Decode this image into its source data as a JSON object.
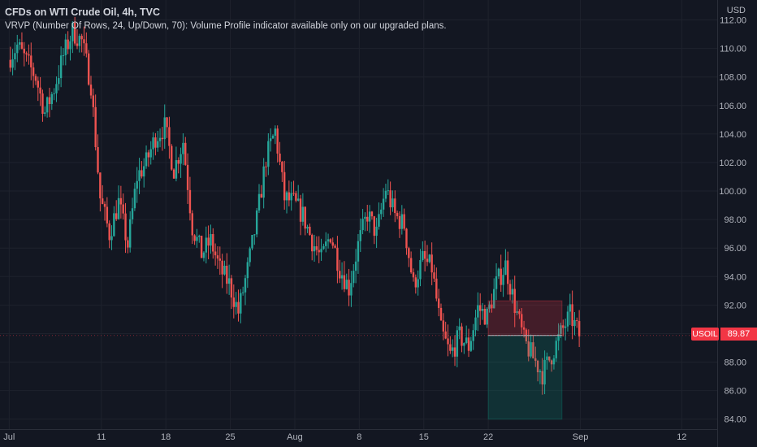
{
  "header": {
    "title": "CFDs on WTI Crude Oil, 4h, TVC",
    "subtitle": "VRVP (Number Of Rows, 24, Up/Down, 70): Volume Profile indicator available only on our upgraded plans."
  },
  "currency": "USD",
  "symbol": "USOIL",
  "last_price": "89.87",
  "colors": {
    "up": "#26a69a",
    "down": "#ef5350",
    "bg": "#131722",
    "grid": "#1e222d",
    "text": "#b2b5be",
    "last": "#f23645"
  },
  "chart_data": {
    "type": "candlestick",
    "y_ticks": [
      "112.00",
      "110.00",
      "108.00",
      "106.00",
      "104.00",
      "102.00",
      "100.00",
      "98.00",
      "96.00",
      "94.00",
      "92.00",
      "90.00",
      "88.00",
      "86.00",
      "84.00"
    ],
    "x_ticks": [
      "Jul",
      "11",
      "18",
      "25",
      "Aug",
      "8",
      "15",
      "22",
      "Sep",
      "12"
    ],
    "ylim": [
      83.3,
      113.4
    ],
    "xlim": [
      "2022-06-30",
      "2022-09-14"
    ],
    "close_path": [
      [
        "2022-07-01",
        109.2
      ],
      [
        "2022-07-02",
        110.2
      ],
      [
        "2022-07-04",
        108.0
      ],
      [
        "2022-07-05",
        105.5
      ],
      [
        "2022-07-06",
        107.2
      ],
      [
        "2022-07-07",
        109.5
      ],
      [
        "2022-07-08",
        111.2
      ],
      [
        "2022-07-09",
        110.5
      ],
      [
        "2022-07-10",
        107.5
      ],
      [
        "2022-07-11",
        99.5
      ],
      [
        "2022-07-12",
        97.0
      ],
      [
        "2022-07-13",
        99.2
      ],
      [
        "2022-07-14",
        96.2
      ],
      [
        "2022-07-15",
        101.0
      ],
      [
        "2022-07-16",
        102.0
      ],
      [
        "2022-07-17",
        103.8
      ],
      [
        "2022-07-18",
        104.5
      ],
      [
        "2022-07-19",
        101.5
      ],
      [
        "2022-07-20",
        103.5
      ],
      [
        "2022-07-21",
        97.5
      ],
      [
        "2022-07-22",
        95.6
      ],
      [
        "2022-07-23",
        96.5
      ],
      [
        "2022-07-24",
        94.5
      ],
      [
        "2022-07-25",
        93.5
      ],
      [
        "2022-07-26",
        91.5
      ],
      [
        "2022-07-27",
        94.5
      ],
      [
        "2022-07-28",
        98.0
      ],
      [
        "2022-07-29",
        102.3
      ],
      [
        "2022-07-30",
        104.2
      ],
      [
        "2022-07-31",
        99.5
      ],
      [
        "2022-08-01",
        99.2
      ],
      [
        "2022-08-02",
        98.3
      ],
      [
        "2022-08-03",
        96.5
      ],
      [
        "2022-08-04",
        95.2
      ],
      [
        "2022-08-05",
        97.0
      ],
      [
        "2022-08-06",
        94.6
      ],
      [
        "2022-08-07",
        93.2
      ],
      [
        "2022-08-08",
        96.2
      ],
      [
        "2022-08-09",
        98.4
      ],
      [
        "2022-08-10",
        97.0
      ],
      [
        "2022-08-11",
        100.2
      ],
      [
        "2022-08-12",
        98.3
      ],
      [
        "2022-08-13",
        97.6
      ],
      [
        "2022-08-14",
        93.4
      ],
      [
        "2022-08-15",
        95.2
      ],
      [
        "2022-08-16",
        94.6
      ],
      [
        "2022-08-17",
        90.2
      ],
      [
        "2022-08-18",
        88.5
      ],
      [
        "2022-08-19",
        89.8
      ],
      [
        "2022-08-20",
        89.1
      ],
      [
        "2022-08-21",
        91.8
      ],
      [
        "2022-08-22",
        91.2
      ],
      [
        "2022-08-23",
        93.5
      ],
      [
        "2022-08-24",
        94.8
      ],
      [
        "2022-08-25",
        92.0
      ],
      [
        "2022-08-26",
        89.5
      ],
      [
        "2022-08-27",
        88.3
      ],
      [
        "2022-08-28",
        87.2
      ],
      [
        "2022-08-29",
        88.5
      ],
      [
        "2022-08-30",
        90.0
      ],
      [
        "2022-08-31",
        91.3
      ],
      [
        "2022-09-01",
        89.9
      ]
    ],
    "position_tool": {
      "entry": 89.87,
      "stop": 92.3,
      "target": 84.0,
      "start": "2022-08-22",
      "end": "2022-08-30"
    }
  }
}
